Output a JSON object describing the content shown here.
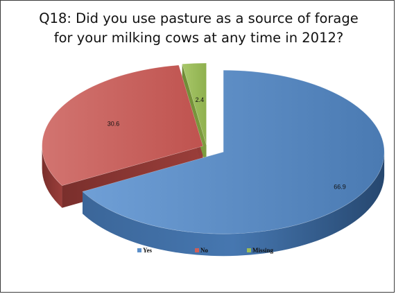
{
  "slide": {
    "title_line1": "Q18: Did you use pasture as a source of forage",
    "title_line2": "for your milking cows at any time in 2012?"
  },
  "chart_data": {
    "type": "pie",
    "title": "Q18: Did you use pasture as a source of forage for your milking cows at any time in 2012?",
    "categories": [
      "Yes",
      "No",
      "Missing"
    ],
    "values": [
      66.9,
      30.6,
      2.4
    ],
    "colors": [
      "#5b8fc9",
      "#cc5f5a",
      "#9bbb59"
    ],
    "legend_position": "bottom",
    "data_labels": [
      "66.9",
      "30.6",
      "2.4"
    ],
    "style": "3d-exploded"
  }
}
